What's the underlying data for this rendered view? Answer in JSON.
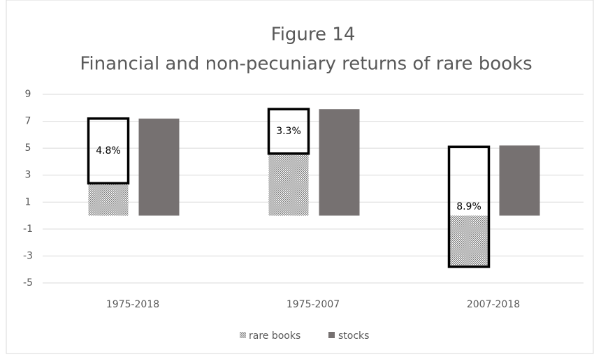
{
  "chart_data": {
    "type": "bar",
    "title": "Figure 14",
    "subtitle": "Financial and non-pecuniary returns of rare books",
    "categories": [
      "1975-2018",
      "1975-2007",
      "2007-2018"
    ],
    "series": [
      {
        "name": "rare books",
        "color": "#9a9a9a",
        "values": [
          2.4,
          4.6,
          -3.8
        ]
      },
      {
        "color": "#000000",
        "values": [
          4.8,
          3.3,
          8.9
        ],
        "value_labels": [
          "4.8%",
          "3.3%",
          "8.9%"
        ]
      },
      {
        "name": "stocks",
        "color": "#767171",
        "values": [
          7.2,
          7.9,
          5.2
        ]
      }
    ],
    "ylim": [
      -5,
      9
    ],
    "yticks": [
      -5,
      -3,
      -1,
      1,
      3,
      5,
      7,
      9
    ],
    "grid": true,
    "legend": "bottom"
  }
}
